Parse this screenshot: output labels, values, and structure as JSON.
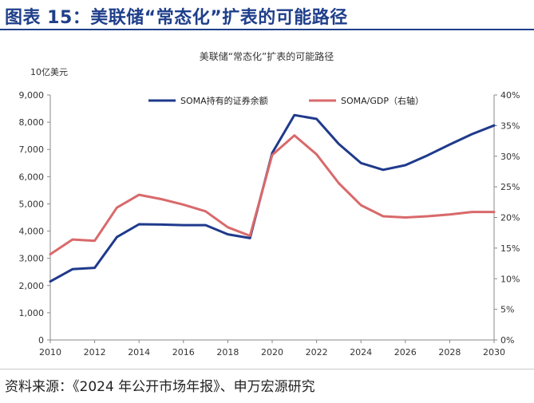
{
  "header": {
    "title": "图表 15：美联储“常态化”扩表的可能路径"
  },
  "footer": {
    "source": "资料来源：《2024 年公开市场年报》、申万宏源研究"
  },
  "chart_data": {
    "type": "line",
    "title": "美联储“常态化”扩表的可能路径",
    "y_unit_label": "10亿美元",
    "x": [
      2010,
      2011,
      2012,
      2013,
      2014,
      2015,
      2016,
      2017,
      2018,
      2019,
      2020,
      2021,
      2022,
      2023,
      2024,
      2025,
      2026,
      2027,
      2028,
      2029,
      2030
    ],
    "x_ticks": [
      "2010",
      "2012",
      "2014",
      "2016",
      "2018",
      "2020",
      "2022",
      "2024",
      "2026",
      "2028",
      "2030"
    ],
    "xlim": [
      2010,
      2030
    ],
    "ylim_left": [
      0,
      9000
    ],
    "y_ticks_left": [
      "0",
      "1,000",
      "2,000",
      "3,000",
      "4,000",
      "5,000",
      "6,000",
      "7,000",
      "8,000",
      "9,000"
    ],
    "ylim_right": [
      0,
      40
    ],
    "y_ticks_right": [
      "0%",
      "5%",
      "10%",
      "15%",
      "20%",
      "25%",
      "30%",
      "35%",
      "40%"
    ],
    "grid": false,
    "legend_position": "top",
    "series": [
      {
        "name": "SOMA持有的证券余额",
        "axis": "left",
        "color": "#1f3a8c",
        "values": [
          2150,
          2600,
          2650,
          3780,
          4250,
          4240,
          4220,
          4220,
          3880,
          3740,
          6870,
          8260,
          8120,
          7200,
          6500,
          6250,
          6420,
          6780,
          7180,
          7560,
          7880
        ]
      },
      {
        "name": "SOMA/GDP（右轴）",
        "axis": "right",
        "color": "#d9696b",
        "values": [
          14.0,
          16.4,
          16.2,
          21.6,
          23.7,
          23.0,
          22.1,
          21.0,
          18.4,
          17.0,
          30.2,
          33.4,
          30.3,
          25.6,
          22.0,
          20.2,
          20.0,
          20.2,
          20.5,
          20.9,
          20.9
        ]
      }
    ]
  }
}
